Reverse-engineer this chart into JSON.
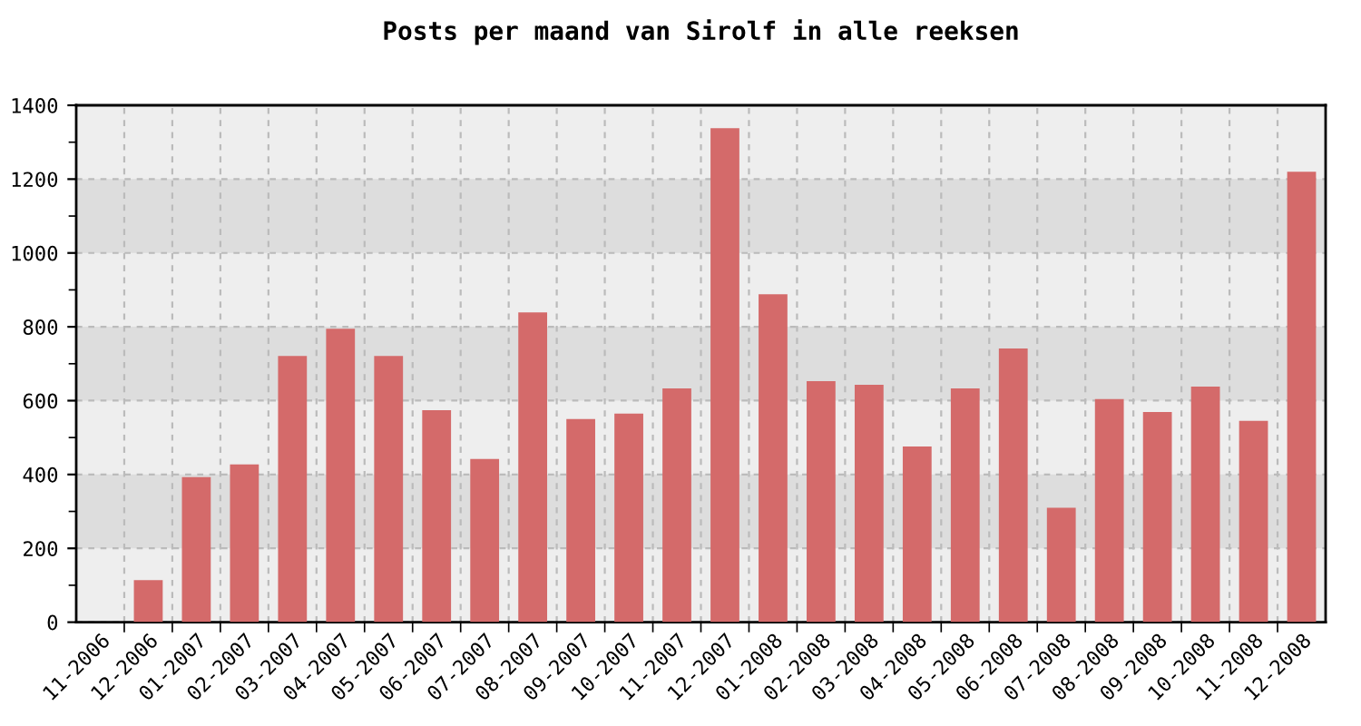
{
  "chart_data": {
    "type": "bar",
    "title": "Posts per maand van Sirolf in alle reeksen",
    "categories": [
      "11-2006",
      "12-2006",
      "01-2007",
      "02-2007",
      "03-2007",
      "04-2007",
      "05-2007",
      "06-2007",
      "07-2007",
      "08-2007",
      "09-2007",
      "10-2007",
      "11-2007",
      "12-2007",
      "01-2008",
      "02-2008",
      "03-2008",
      "04-2008",
      "05-2008",
      "06-2008",
      "07-2008",
      "08-2008",
      "09-2008",
      "10-2008",
      "11-2008",
      "12-2008"
    ],
    "values": [
      0,
      114,
      393,
      427,
      721,
      795,
      721,
      574,
      442,
      839,
      550,
      565,
      633,
      1338,
      888,
      653,
      643,
      476,
      633,
      741,
      310,
      604,
      569,
      638,
      545,
      1220
    ],
    "color": "#d46a6a",
    "ylim": [
      0,
      1400
    ],
    "yticks": [
      0,
      200,
      400,
      600,
      800,
      1000,
      1200,
      1400
    ],
    "bands": [
      {
        "axis": "y",
        "from": 200,
        "to": 400,
        "color": "#dddddd"
      },
      {
        "axis": "y",
        "from": 600,
        "to": 800,
        "color": "#dddddd"
      },
      {
        "axis": "y",
        "from": 1000,
        "to": 1200,
        "color": "#dddddd"
      }
    ],
    "grid": true
  }
}
